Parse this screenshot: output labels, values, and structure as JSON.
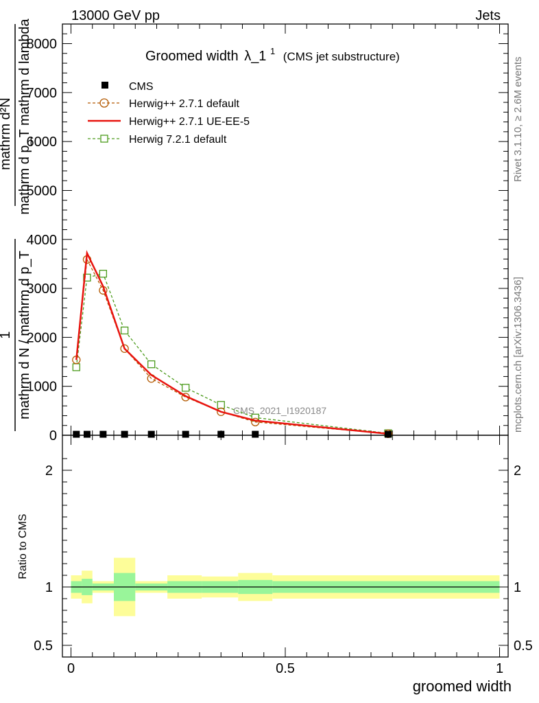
{
  "header": {
    "energy": "13000 GeV pp",
    "category": "Jets"
  },
  "side_labels": {
    "rivet": "Rivet 3.1.10, ≥ 2.6M events",
    "mcplots": "mcplots.cern.ch [arXiv:1306.3436]"
  },
  "chart_data": {
    "type": "line",
    "title": "Groomed width λ_1¹ (CMS jet substructure)",
    "title_main": "Groomed width",
    "title_lambda": "λ_1",
    "title_sup": "1",
    "title_sub": "(CMS jet substructure)",
    "xlabel": "groomed width",
    "ylabel_num": "1",
    "ylabel_den": "mathrm d N / mathrm d p_T",
    "ylabel_right_num": "mathrm d²N",
    "ylabel_right_den": "mathrm d p_T mathrm d lambda",
    "analysis_id": "CMS_2021_I1920187",
    "xlim": [
      -0.02,
      1.02
    ],
    "ylim": [
      0,
      8400
    ],
    "x_ticks": [
      0,
      0.5,
      1
    ],
    "x_tick_labels": [
      "0",
      "0.5",
      "1"
    ],
    "y_ticks": [
      0,
      1000,
      2000,
      3000,
      4000,
      5000,
      6000,
      7000,
      8000
    ],
    "y_tick_labels": [
      "0",
      "1000",
      "2000",
      "3000",
      "4000",
      "5000",
      "6000",
      "7000",
      "8000"
    ],
    "series": [
      {
        "name": "CMS",
        "style": "marker-square",
        "color": "#000000",
        "x": [
          0.0125,
          0.0375,
          0.075,
          0.125,
          0.1875,
          0.2675,
          0.35,
          0.43,
          0.74
        ],
        "y": [
          20,
          20,
          20,
          20,
          20,
          20,
          20,
          20,
          20
        ]
      },
      {
        "name": "Herwig++ 2.7.1 default",
        "style": "dashed-circle",
        "color": "#b35900",
        "x": [
          0.0125,
          0.0375,
          0.075,
          0.125,
          0.1875,
          0.2675,
          0.35,
          0.43,
          0.74
        ],
        "y": [
          1540,
          3590,
          2960,
          1770,
          1160,
          780,
          480,
          270,
          30
        ]
      },
      {
        "name": "Herwig++ 2.7.1 UE-EE-5",
        "style": "solid",
        "color": "#e8130e",
        "x": [
          0.0125,
          0.0375,
          0.075,
          0.125,
          0.1875,
          0.2675,
          0.35,
          0.43,
          0.74
        ],
        "y": [
          1540,
          3720,
          3040,
          1770,
          1230,
          800,
          480,
          300,
          30
        ]
      },
      {
        "name": "Herwig 7.2.1 default",
        "style": "dashed-square",
        "color": "#4a9a1a",
        "x": [
          0.0125,
          0.0375,
          0.075,
          0.125,
          0.1875,
          0.2675,
          0.35,
          0.43,
          0.74
        ],
        "y": [
          1390,
          3220,
          3300,
          2140,
          1450,
          970,
          620,
          360,
          40
        ]
      }
    ],
    "ratio": {
      "ylabel": "Ratio to CMS",
      "ylim": [
        0.4,
        2.3
      ],
      "y_ticks": [
        0.5,
        1,
        2
      ],
      "y_tick_labels": [
        "0.5",
        "1",
        "2"
      ],
      "bands": [
        {
          "x0": 0.0,
          "x1": 0.025,
          "inner": [
            0.95,
            1.05
          ],
          "outer": [
            0.9,
            1.1
          ]
        },
        {
          "x0": 0.025,
          "x1": 0.05,
          "inner": [
            0.93,
            1.07
          ],
          "outer": [
            0.86,
            1.14
          ]
        },
        {
          "x0": 0.05,
          "x1": 0.1,
          "inner": [
            0.97,
            1.03
          ],
          "outer": [
            0.95,
            1.05
          ]
        },
        {
          "x0": 0.1,
          "x1": 0.15,
          "inner": [
            0.88,
            1.12
          ],
          "outer": [
            0.75,
            1.25
          ]
        },
        {
          "x0": 0.15,
          "x1": 0.225,
          "inner": [
            0.97,
            1.03
          ],
          "outer": [
            0.95,
            1.05
          ]
        },
        {
          "x0": 0.225,
          "x1": 0.305,
          "inner": [
            0.95,
            1.05
          ],
          "outer": [
            0.9,
            1.1
          ]
        },
        {
          "x0": 0.305,
          "x1": 0.39,
          "inner": [
            0.95,
            1.05
          ],
          "outer": [
            0.91,
            1.09
          ]
        },
        {
          "x0": 0.39,
          "x1": 0.47,
          "inner": [
            0.94,
            1.06
          ],
          "outer": [
            0.88,
            1.12
          ]
        },
        {
          "x0": 0.47,
          "x1": 1.0,
          "inner": [
            0.95,
            1.05
          ],
          "outer": [
            0.9,
            1.1
          ]
        }
      ],
      "inner_color": "#99f59a",
      "outer_color": "#fdfd99"
    }
  }
}
